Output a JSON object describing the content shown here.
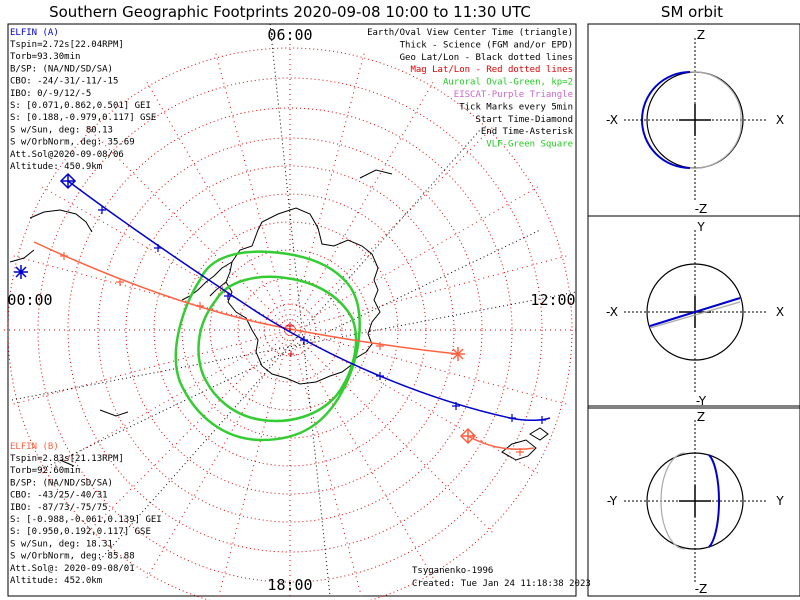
{
  "title": "Southern Geographic Footprints 2020-09-08 10:00 to 11:30 UTC",
  "sm_orbit_title": "SM orbit",
  "mlt_labels": {
    "top": "06:00",
    "left": "00:00",
    "right": "12:00",
    "bottom": "18:00"
  },
  "elfin_a": {
    "name": "ELFIN (A)",
    "lines": [
      "Tspin=2.72s[22.04RPM]",
      "Torb=93.30min",
      "B/SP: (NA/ND/SD/SA)",
      "CBO: -24/-31/-11/-15",
      "IBO: 0/-9/12/-5",
      "S: [0.071,0.862,0.501] GEI",
      "S: [0.188,-0.979,0.117] GSE",
      "S w/Sun, deg: 80.13",
      "S w/OrbNorm, deg: 35.69",
      "Att.Sol@2020-09-08/06",
      "Altitude: 450.9km"
    ]
  },
  "elfin_b": {
    "name": "ELFIN (B)",
    "lines": [
      "Tspin=2.83s[21.13RPM]",
      "Torb=92.60min",
      "B/SP: (NA/ND/SD/SA)",
      "CBO: -43/25/-40/31",
      "IBO: -87/73/-75/75",
      "S: [-0.988,-0.061,0.139] GEI",
      "S: [0.950,0.192,0.117] GSE",
      "S w/Sun, deg: 18.31",
      "S w/OrbNorm, deg: 85.88",
      "Att.Sol@: 2020-09-08/01",
      "Altitude: 452.0km"
    ]
  },
  "legend": [
    {
      "text": "Earth/Oval View Center Time (triangle)",
      "color": "#000000"
    },
    {
      "text": "Thick - Science (FGM and/or EPD)",
      "color": "#000000"
    },
    {
      "text": "Geo Lat/Lon - Black dotted lines",
      "color": "#000000"
    },
    {
      "text": "Mag Lat/Lon - Red dotted lines",
      "color": "#e00000"
    },
    {
      "text": "Auroral Oval-Green, kp=2",
      "color": "#22cc22"
    },
    {
      "text": "EISCAT-Purple Triangle",
      "color": "#cc66cc"
    },
    {
      "text": "Tick Marks every 5min",
      "color": "#000000"
    },
    {
      "text": "Start Time-Diamond",
      "color": "#000000"
    },
    {
      "text": "End Time-Asterisk",
      "color": "#000000"
    },
    {
      "text": "VLF-Green Square",
      "color": "#22cc22"
    }
  ],
  "footer": {
    "model": "Tsyganenko-1996",
    "created": "Created: Tue Jan 24 11:18:38 2023"
  },
  "sm_panels": [
    {
      "top": "Z",
      "bottom": "-Z",
      "left": "-X",
      "right": "X"
    },
    {
      "top": "Y",
      "bottom": "-Y",
      "left": "-X",
      "right": "X"
    },
    {
      "top": "Z",
      "bottom": "-Z",
      "left": "-Y",
      "right": "Y"
    }
  ],
  "colors": {
    "elfin_a": "#0000cc",
    "elfin_b": "#ff6040",
    "auroral_oval": "#33cc33",
    "mag_grid": "#e00000",
    "geo_grid": "#000000"
  },
  "chart_data": [
    {
      "type": "polar-map",
      "title": "Southern Geographic Footprints 2020-09-08 10:00 to 11:30 UTC",
      "projection": "south polar, MLT labels 00:00/06:00/12:00/18:00",
      "series": [
        {
          "name": "ELFIN (A)"
        },
        {
          "name": "ELFIN (B)"
        }
      ]
    },
    {
      "type": "orbit-projection",
      "title": "SM orbit",
      "panels": [
        "X-Z",
        "X-Y",
        "Y-Z"
      ]
    }
  ]
}
